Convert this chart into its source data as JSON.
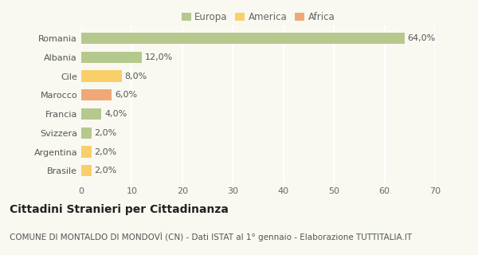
{
  "categories": [
    "Romania",
    "Albania",
    "Cile",
    "Marocco",
    "Francia",
    "Svizzera",
    "Argentina",
    "Brasile"
  ],
  "values": [
    64.0,
    12.0,
    8.0,
    6.0,
    4.0,
    2.0,
    2.0,
    2.0
  ],
  "bar_colors": [
    "#b5c98e",
    "#b5c98e",
    "#f9cf6a",
    "#f0a878",
    "#b5c98e",
    "#b5c98e",
    "#f9cf6a",
    "#f9cf6a"
  ],
  "bar_labels": [
    "64,0%",
    "12,0%",
    "8,0%",
    "6,0%",
    "4,0%",
    "2,0%",
    "2,0%",
    "2,0%"
  ],
  "legend": [
    {
      "label": "Europa",
      "color": "#b5c98e"
    },
    {
      "label": "America",
      "color": "#f9cf6a"
    },
    {
      "label": "Africa",
      "color": "#f0a878"
    }
  ],
  "xlim": [
    0,
    70
  ],
  "xticks": [
    0,
    10,
    20,
    30,
    40,
    50,
    60,
    70
  ],
  "title": "Cittadini Stranieri per Cittadinanza",
  "subtitle": "COMUNE DI MONTALDO DI MONDOVÌ (CN) - Dati ISTAT al 1° gennaio - Elaborazione TUTTITALIA.IT",
  "background_color": "#f9f9f2",
  "grid_color": "#ffffff",
  "bar_height": 0.6,
  "title_fontsize": 10,
  "subtitle_fontsize": 7.5,
  "label_fontsize": 8,
  "tick_fontsize": 8,
  "legend_fontsize": 8.5
}
